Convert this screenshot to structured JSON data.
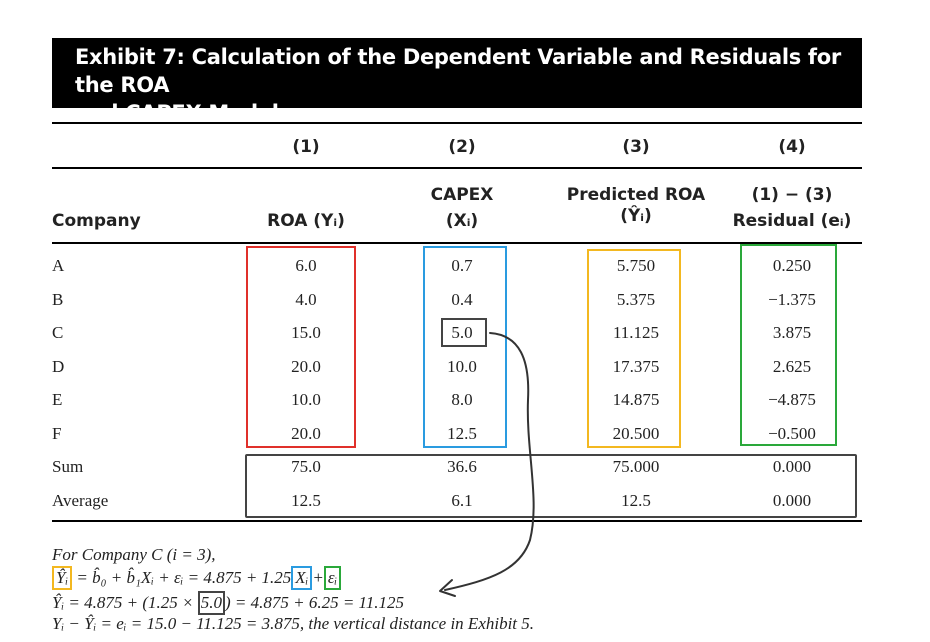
{
  "exhibit": {
    "title_line1": "Exhibit 7: Calculation of the Dependent Variable and Residuals for the ROA",
    "title_line2": "and CAPEX Model"
  },
  "table": {
    "col_numbers": [
      "(1)",
      "(2)",
      "(3)",
      "(4)"
    ],
    "headers": {
      "company": "Company",
      "roa": "ROA (Yᵢ)",
      "capex_line1": "CAPEX",
      "capex_line2": "(Xᵢ)",
      "pred_line1": "Predicted ROA",
      "pred_line2": "(Ŷᵢ)",
      "resid_line1": "(1) − (3)",
      "resid_line2": "Residual (eᵢ)"
    },
    "rows": [
      {
        "company": "A",
        "roa": "6.0",
        "capex": "0.7",
        "pred": "5.750",
        "resid": "0.250"
      },
      {
        "company": "B",
        "roa": "4.0",
        "capex": "0.4",
        "pred": "5.375",
        "resid": "−1.375"
      },
      {
        "company": "C",
        "roa": "15.0",
        "capex": "5.0",
        "pred": "11.125",
        "resid": "3.875"
      },
      {
        "company": "D",
        "roa": "20.0",
        "capex": "10.0",
        "pred": "17.375",
        "resid": "2.625"
      },
      {
        "company": "E",
        "roa": "10.0",
        "capex": "8.0",
        "pred": "14.875",
        "resid": "−4.875"
      },
      {
        "company": "F",
        "roa": "20.0",
        "capex": "12.5",
        "pred": "20.500",
        "resid": "−0.500"
      }
    ],
    "summary": [
      {
        "label": "Sum",
        "roa": "75.0",
        "capex": "36.6",
        "pred": "75.000",
        "resid": "0.000"
      },
      {
        "label": "Average",
        "roa": "12.5",
        "capex": "6.1",
        "pred": "12.5",
        "resid": "0.000"
      }
    ]
  },
  "notes": {
    "line1": "For Company C (i = 3),",
    "line2_a": "Ŷᵢ",
    "line2_b": " =  b̂₀ + b̂₁Xᵢ + εᵢ  =  4.875 + 1.25",
    "line2_x": "Xᵢ",
    "line2_plus": "+",
    "line2_e": "εᵢ",
    "line3_a": "Ŷᵢ  =  4.875 + (1.25 × ",
    "line3_box": "5.0",
    "line3_b": ") = 4.875 + 6.25  =  11.125",
    "line4": "Yᵢ − Ŷᵢ  =  eᵢ  =  15.0 − 11.125  =  3.875, the vertical distance in Exhibit 5."
  },
  "colors": {
    "red": "#e0302a",
    "blue": "#2a9be0",
    "yellow": "#f3b820",
    "green": "#2aa83a",
    "gray": "#444444"
  }
}
